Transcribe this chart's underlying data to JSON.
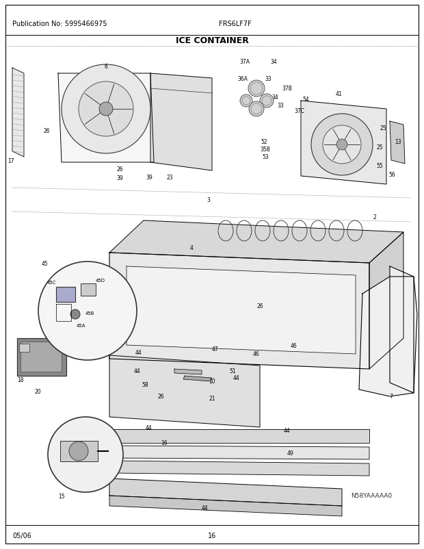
{
  "publication_no": "Publication No: 5995466975",
  "model": "FRS6LF7F",
  "title": "ICE CONTAINER",
  "date_code": "05/06",
  "page_number": "16",
  "diagram_code": "N58YAAAAA0",
  "background_color": "#ffffff",
  "border_color": "#000000",
  "text_color": "#000000",
  "header_fontsize": 7,
  "title_fontsize": 9,
  "footer_fontsize": 7,
  "fig_width": 6.2,
  "fig_height": 8.03,
  "dpi": 100
}
